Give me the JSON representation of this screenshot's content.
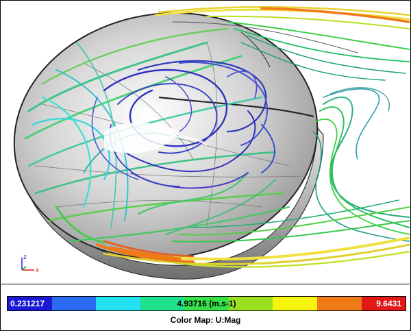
{
  "legend": {
    "min_label": "0.231217",
    "mid_label": "4.93716 (m.s-1)",
    "max_label": "9.6431",
    "title": "Color Map: U:Mag",
    "colors": [
      "#1a1ad6",
      "#2a6af5",
      "#22e0ee",
      "#1fe08c",
      "#38e04a",
      "#9ae020",
      "#f5f510",
      "#f07a18",
      "#e01818"
    ]
  },
  "axis_triad": {
    "z_label": "z",
    "x_label": "x",
    "colors": {
      "z": "#2020d0",
      "x": "#d02020",
      "y": "#20a020"
    }
  }
}
